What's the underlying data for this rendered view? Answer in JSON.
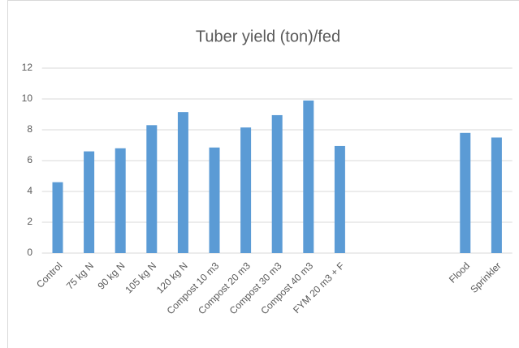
{
  "chart_data": {
    "type": "bar",
    "title": "Tuber yield (ton)/fed",
    "categories": [
      "Control",
      "75 kg N",
      "90 kg N",
      "105 kg N",
      "120 kg N",
      "Compost 10 m3",
      "Compost 20 m3",
      "Compost 30 m3",
      "Compost 40 m3",
      "FYM 20 m3 + F",
      null,
      null,
      null,
      "Flood",
      "Sprinkler"
    ],
    "values": [
      4.6,
      6.6,
      6.8,
      8.3,
      9.15,
      6.85,
      8.15,
      8.95,
      9.9,
      6.95,
      null,
      null,
      null,
      7.8,
      7.5
    ],
    "color": "#5b9bd5",
    "ylim": [
      0,
      12
    ],
    "yticks": [
      0,
      2,
      4,
      6,
      8,
      10,
      12
    ],
    "grid": true
  }
}
